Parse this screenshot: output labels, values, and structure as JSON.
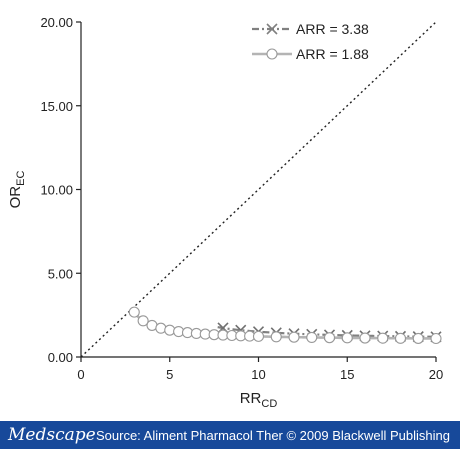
{
  "chart_data": {
    "type": "line",
    "xlabel": {
      "main": "RR",
      "sub": "CD"
    },
    "ylabel": {
      "main": "OR",
      "sub": "EC"
    },
    "xlim": [
      0,
      20
    ],
    "ylim": [
      0,
      20
    ],
    "x_ticks": [
      "0",
      "5",
      "10",
      "15",
      "20"
    ],
    "y_ticks": [
      "0.00",
      "5.00",
      "10.00",
      "15.00",
      "20.00"
    ],
    "legend_position": "top-right",
    "series": [
      {
        "name": "ARR = 3.38",
        "marker": "x",
        "line_style": "dash-dot",
        "color": "#808080",
        "arr": 3.38,
        "marker_x": [
          8,
          9,
          10,
          11,
          12,
          13,
          14,
          15,
          16,
          17,
          18,
          19,
          20
        ],
        "curve_x_range": [
          7.7,
          20
        ]
      },
      {
        "name": "ARR = 1.88",
        "marker": "circle",
        "line_style": "solid",
        "color": "#b4b4b4",
        "arr": 1.88,
        "marker_x": [
          3,
          3.5,
          4,
          4.5,
          5,
          5.5,
          6,
          6.5,
          7,
          7.5,
          8,
          8.5,
          9,
          9.5,
          10,
          11,
          12,
          13,
          14,
          15,
          16,
          17,
          18,
          19,
          20
        ],
        "curve_x_range": [
          2.98,
          20
        ]
      },
      {
        "name": "",
        "marker": "none",
        "line_style": "dotted",
        "color": "#222222",
        "points": [
          [
            0,
            0
          ],
          [
            20,
            20
          ]
        ]
      }
    ]
  },
  "footer": {
    "brand": "Medscape",
    "source": "Source: Aliment Pharmacol Ther © 2009 Blackwell Publishing"
  }
}
